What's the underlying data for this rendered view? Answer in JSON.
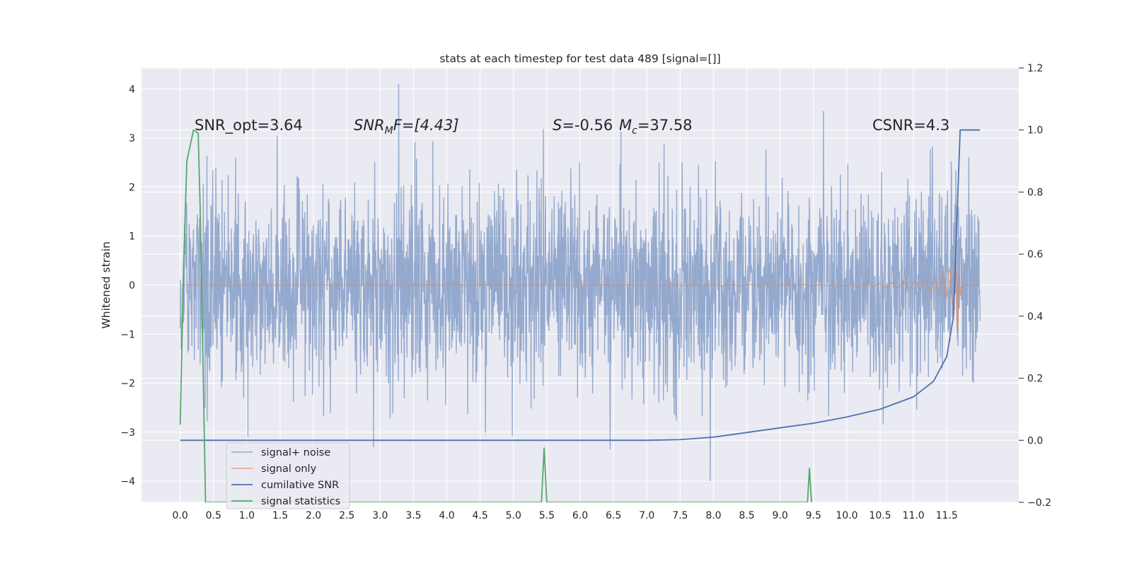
{
  "chart_data": {
    "type": "line",
    "title": "stats at each timestep for test data 489 [signal=[]]",
    "ylabel": "Whitened strain",
    "y2label": "",
    "xlabel": "",
    "x_ticks": [
      "0.0",
      "0.5",
      "1.0",
      "1.5",
      "2.0",
      "2.5",
      "3.0",
      "3.5",
      "4.0",
      "4.5",
      "5.0",
      "5.5",
      "6.0",
      "6.5",
      "7.0",
      "7.5",
      "8.0",
      "8.5",
      "9.0",
      "9.5",
      "10.0",
      "10.5",
      "11.0",
      "11.5"
    ],
    "y_ticks": [
      "−4",
      "−3",
      "−2",
      "−1",
      "0",
      "1",
      "2",
      "3",
      "4"
    ],
    "y2_ticks": [
      "−0.2",
      "0.0",
      "0.2",
      "0.4",
      "0.6",
      "0.8",
      "1.0",
      "1.2"
    ],
    "xlim": [
      -0.58,
      12.58
    ],
    "ylim": [
      -4.43,
      4.43
    ],
    "y2lim": [
      -0.2,
      1.2
    ],
    "grid": true,
    "annotations": {
      "snr_opt": "SNR_opt=3.64",
      "snr_mf_main": "SNR",
      "snr_mf_sub": "M",
      "snr_mf_rest": "F=[4.43]",
      "s_main": "S",
      "s_rest": "=-0.56",
      "mc_main": "M",
      "mc_sub": "c",
      "mc_rest": "=37.58",
      "csnr": "CSNR=4.3"
    },
    "legend_position": "lower-left",
    "series": [
      {
        "name": "signal+ noise",
        "axis": "left",
        "color": "#4c72b0",
        "x_range": [
          0.0,
          12.0
        ],
        "typical_amplitude": 1.6,
        "notable_peaks": [
          {
            "x": 3.28,
            "y": 4.1
          },
          {
            "x": 9.65,
            "y": 3.55
          },
          {
            "x": 7.95,
            "y": -4.0
          },
          {
            "x": 6.45,
            "y": -3.35
          },
          {
            "x": 2.9,
            "y": -3.3
          }
        ]
      },
      {
        "name": "signal only",
        "axis": "left",
        "color": "#dd8452",
        "x": [
          0.0,
          10.0,
          10.5,
          11.0,
          11.3,
          11.5,
          11.6,
          11.65,
          11.7,
          11.75,
          12.0
        ],
        "envelope": [
          0.0,
          0.01,
          0.03,
          0.07,
          0.15,
          0.28,
          0.45,
          0.75,
          0.3,
          0.0,
          0.0
        ]
      },
      {
        "name": "cumilative SNR",
        "axis": "right",
        "color": "#4c72b0",
        "x": [
          0.0,
          7.0,
          7.5,
          8.0,
          8.5,
          9.0,
          9.5,
          10.0,
          10.5,
          11.0,
          11.3,
          11.5,
          11.6,
          11.65,
          11.7,
          12.0
        ],
        "y": [
          0.0,
          0.0,
          0.002,
          0.01,
          0.025,
          0.04,
          0.055,
          0.075,
          0.1,
          0.14,
          0.19,
          0.27,
          0.4,
          0.7,
          1.0,
          1.0
        ]
      },
      {
        "name": "signal statistics",
        "axis": "right",
        "color": "#55a868",
        "x": [
          0.0,
          0.05,
          0.1,
          0.2,
          0.27,
          0.3,
          0.38,
          5.42,
          5.46,
          5.5,
          9.41,
          9.44,
          9.47
        ],
        "y": [
          0.05,
          0.55,
          0.9,
          1.0,
          0.99,
          0.75,
          -0.2,
          -0.2,
          -0.025,
          -0.2,
          -0.2,
          -0.09,
          -0.2
        ]
      }
    ]
  }
}
